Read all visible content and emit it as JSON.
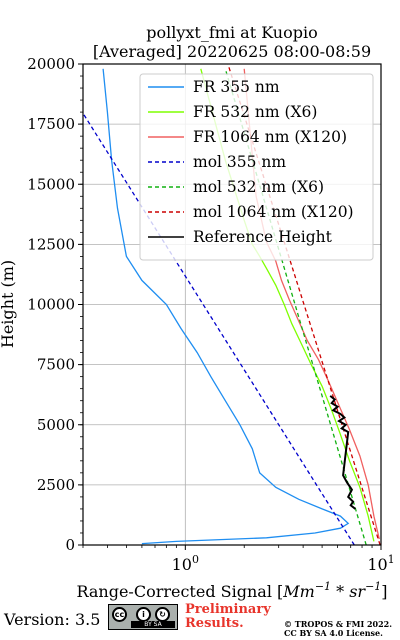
{
  "chart_data": {
    "type": "line",
    "title": "pollyxt_fmi at Kuopio",
    "subtitle": "[Averaged] 20220625 08:00-08:59",
    "xlabel": "Range-Corrected Signal [",
    "xlabel_math": "Mm",
    "xlabel_sup1": "−1",
    "xlabel_mid": " * sr",
    "xlabel_sup2": "−1",
    "xlabel_end": "]",
    "ylabel": "Height (m)",
    "xscale": "log",
    "xlim": [
      0.3,
      10
    ],
    "ylim": [
      0,
      20000
    ],
    "xticks": [
      {
        "value": 1,
        "base": "10",
        "exp": "0"
      },
      {
        "value": 10,
        "base": "10",
        "exp": "1"
      }
    ],
    "yticks": [
      "0",
      "2500",
      "5000",
      "7500",
      "10000",
      "12500",
      "15000",
      "17500",
      "20000"
    ],
    "grid": true,
    "legend_position": "upper-right",
    "series": [
      {
        "name": "FR 355 nm",
        "color": "#1f8ef1",
        "style": "solid",
        "x": [
          0.6,
          0.9,
          2.6,
          4.6,
          6.2,
          6.8,
          6.2,
          5.0,
          3.8,
          2.9,
          2.4,
          2.2,
          1.9,
          1.6,
          1.35,
          1.15,
          0.95,
          0.8,
          0.6,
          0.5,
          0.45,
          0.42,
          0.4,
          0.38
        ],
        "y": [
          60,
          150,
          300,
          500,
          700,
          900,
          1200,
          1500,
          1900,
          2400,
          3000,
          4000,
          5000,
          6000,
          7000,
          8000,
          9000,
          10000,
          11000,
          12000,
          14000,
          16000,
          18000,
          19800
        ]
      },
      {
        "name": "FR 532 nm (X6)",
        "color": "#7fff00",
        "style": "solid",
        "x": [
          9.2,
          8.6,
          7.8,
          6.9,
          6.2,
          5.6,
          5.0,
          4.4,
          3.9,
          3.5,
          3.2,
          2.9,
          2.6,
          2.4,
          2.2,
          2.0,
          1.6,
          1.2
        ],
        "y": [
          150,
          1200,
          2400,
          3500,
          4600,
          5600,
          6600,
          7500,
          8400,
          9200,
          10000,
          10800,
          11500,
          12000,
          12500,
          13500,
          16000,
          19800
        ]
      },
      {
        "name": "FR 1064 nm (X120)",
        "color": "#f06060",
        "style": "solid",
        "x": [
          9.8,
          9.2,
          8.6,
          7.8,
          6.9,
          6.1,
          5.4,
          4.8,
          4.2,
          3.8,
          3.4,
          3.1,
          2.9,
          2.6,
          2.3,
          2.0
        ],
        "y": [
          250,
          1200,
          2500,
          3700,
          4800,
          5800,
          6800,
          7700,
          8500,
          9300,
          10200,
          11000,
          11800,
          12600,
          14500,
          19800
        ]
      },
      {
        "name": "mol 355 nm",
        "color": "#0000cc",
        "style": "dashed",
        "x": [
          7.3,
          0.3
        ],
        "y": [
          0,
          17950
        ]
      },
      {
        "name": "mol 532 nm (X6)",
        "color": "#10b010",
        "style": "dashed",
        "x": [
          8.4,
          1.6
        ],
        "y": [
          0,
          19800
        ]
      },
      {
        "name": "mol 1064 nm (X120)",
        "color": "#cc0000",
        "style": "dashed",
        "x": [
          9.9,
          1.65
        ],
        "y": [
          0,
          20000
        ]
      },
      {
        "name": "Reference Height",
        "color": "#000000",
        "style": "solid",
        "x": [
          5.5,
          5.8,
          5.6,
          6.0,
          5.7,
          6.2,
          6.5,
          6.1,
          6.6,
          6.3,
          6.8,
          6.4,
          6.7,
          7.1,
          6.8,
          7.2,
          7.0,
          7.4
        ],
        "y": [
          6200,
          6050,
          5900,
          5750,
          5600,
          5450,
          5300,
          5150,
          5000,
          4850,
          4700,
          2900,
          2600,
          2300,
          2000,
          1800,
          1650,
          1500
        ]
      }
    ]
  },
  "footer": {
    "version": "Version: 3.5",
    "cc_label": "BY   SA",
    "preliminary_line1": "Preliminary",
    "preliminary_line2": "Results.",
    "copyright_line1": "© TROPOS & FMI 2022.",
    "copyright_line2": "CC BY SA 4.0 License."
  }
}
